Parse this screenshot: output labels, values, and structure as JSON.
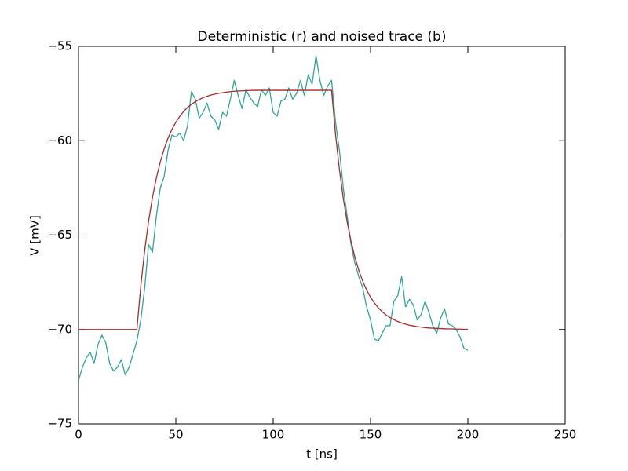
{
  "chart_data": {
    "type": "line",
    "title": "Deterministic (r) and noised trace (b)",
    "xlabel": "t [ns]",
    "ylabel": "V [mV]",
    "x": [
      0,
      2,
      4,
      6,
      8,
      10,
      12,
      14,
      16,
      18,
      20,
      22,
      24,
      26,
      28,
      30,
      32,
      34,
      36,
      38,
      40,
      42,
      44,
      46,
      48,
      50,
      52,
      54,
      56,
      58,
      60,
      62,
      64,
      66,
      68,
      70,
      72,
      74,
      76,
      78,
      80,
      82,
      84,
      86,
      88,
      90,
      92,
      94,
      96,
      98,
      100,
      102,
      104,
      106,
      108,
      110,
      112,
      114,
      116,
      118,
      120,
      122,
      124,
      126,
      128,
      130,
      132,
      134,
      136,
      138,
      140,
      142,
      144,
      146,
      148,
      150,
      152,
      154,
      156,
      158,
      160,
      162,
      164,
      166,
      168,
      170,
      172,
      174,
      176,
      178,
      180,
      182,
      184,
      186,
      188,
      190,
      192,
      194,
      196,
      198,
      200
    ],
    "series": [
      {
        "color": "#30a59c",
        "values": [
          -72.7,
          -72.0,
          -71.5,
          -71.2,
          -71.8,
          -70.8,
          -70.3,
          -70.7,
          -71.8,
          -72.2,
          -72.0,
          -71.6,
          -72.4,
          -72.0,
          -71.3,
          -70.6,
          -69.5,
          -67.8,
          -65.5,
          -65.9,
          -64.0,
          -62.5,
          -61.9,
          -60.5,
          -59.7,
          -59.8,
          -59.6,
          -60.0,
          -59.2,
          -57.4,
          -57.8,
          -58.8,
          -58.5,
          -58.0,
          -58.7,
          -58.9,
          -59.4,
          -58.5,
          -58.7,
          -57.8,
          -56.8,
          -57.6,
          -58.3,
          -57.3,
          -57.7,
          -58.0,
          -58.2,
          -57.3,
          -57.6,
          -57.2,
          -58.5,
          -58.7,
          -57.9,
          -57.8,
          -57.2,
          -57.8,
          -57.5,
          -56.8,
          -57.6,
          -56.5,
          -57.0,
          -55.5,
          -56.8,
          -57.6,
          -57.1,
          -56.8,
          -59.0,
          -60.5,
          -62.5,
          -64.0,
          -65.5,
          -66.5,
          -67.2,
          -67.8,
          -68.8,
          -69.5,
          -70.5,
          -70.6,
          -70.2,
          -69.8,
          -69.8,
          -68.5,
          -68.2,
          -67.2,
          -68.8,
          -68.4,
          -68.7,
          -69.5,
          -69.2,
          -68.5,
          -69.1,
          -69.8,
          -70.2,
          -69.4,
          -68.9,
          -69.7,
          -69.8,
          -70.0,
          -70.4,
          -71.0,
          -71.1
        ]
      },
      {
        "color": "#a82a2a",
        "values": [
          -70,
          -70,
          -70,
          -70,
          -70,
          -70,
          -70,
          -70,
          -70,
          -70,
          -70,
          -70,
          -70,
          -70,
          -70,
          -70,
          -67.7,
          -65.81,
          -64.27,
          -63.0,
          -61.97,
          -61.13,
          -60.43,
          -59.86,
          -59.4,
          -59.02,
          -58.71,
          -58.45,
          -58.24,
          -58.07,
          -57.93,
          -57.82,
          -57.72,
          -57.65,
          -57.58,
          -57.53,
          -57.49,
          -57.46,
          -57.43,
          -57.4,
          -57.38,
          -57.37,
          -57.36,
          -57.35,
          -57.34,
          -57.33,
          -57.33,
          -57.33,
          -57.33,
          -57.33,
          -57.33,
          -57.33,
          -57.33,
          -57.33,
          -57.33,
          -57.33,
          -57.33,
          -57.33,
          -57.33,
          -57.33,
          -57.33,
          -57.33,
          -57.33,
          -57.33,
          -57.33,
          -57.33,
          -59.63,
          -61.51,
          -63.05,
          -64.31,
          -65.34,
          -66.18,
          -66.88,
          -67.44,
          -67.91,
          -68.29,
          -68.6,
          -68.85,
          -69.06,
          -69.23,
          -69.37,
          -69.48,
          -69.58,
          -69.65,
          -69.72,
          -69.77,
          -69.81,
          -69.85,
          -69.87,
          -69.9,
          -69.92,
          -69.93,
          -69.94,
          -69.95,
          -69.96,
          -69.97,
          -69.97,
          -69.98,
          -69.98,
          -69.99,
          -69.99
        ]
      }
    ],
    "xlim": [
      0,
      250
    ],
    "xticks": [
      0,
      50,
      100,
      150,
      200,
      250
    ],
    "ylim": [
      -75,
      -55
    ],
    "yticks": [
      {
        "value": -75,
        "label": "−75"
      },
      {
        "value": -70,
        "label": "−70"
      },
      {
        "value": -65,
        "label": "−65"
      },
      {
        "value": -60,
        "label": "−60"
      },
      {
        "value": -55,
        "label": "−55"
      }
    ]
  }
}
